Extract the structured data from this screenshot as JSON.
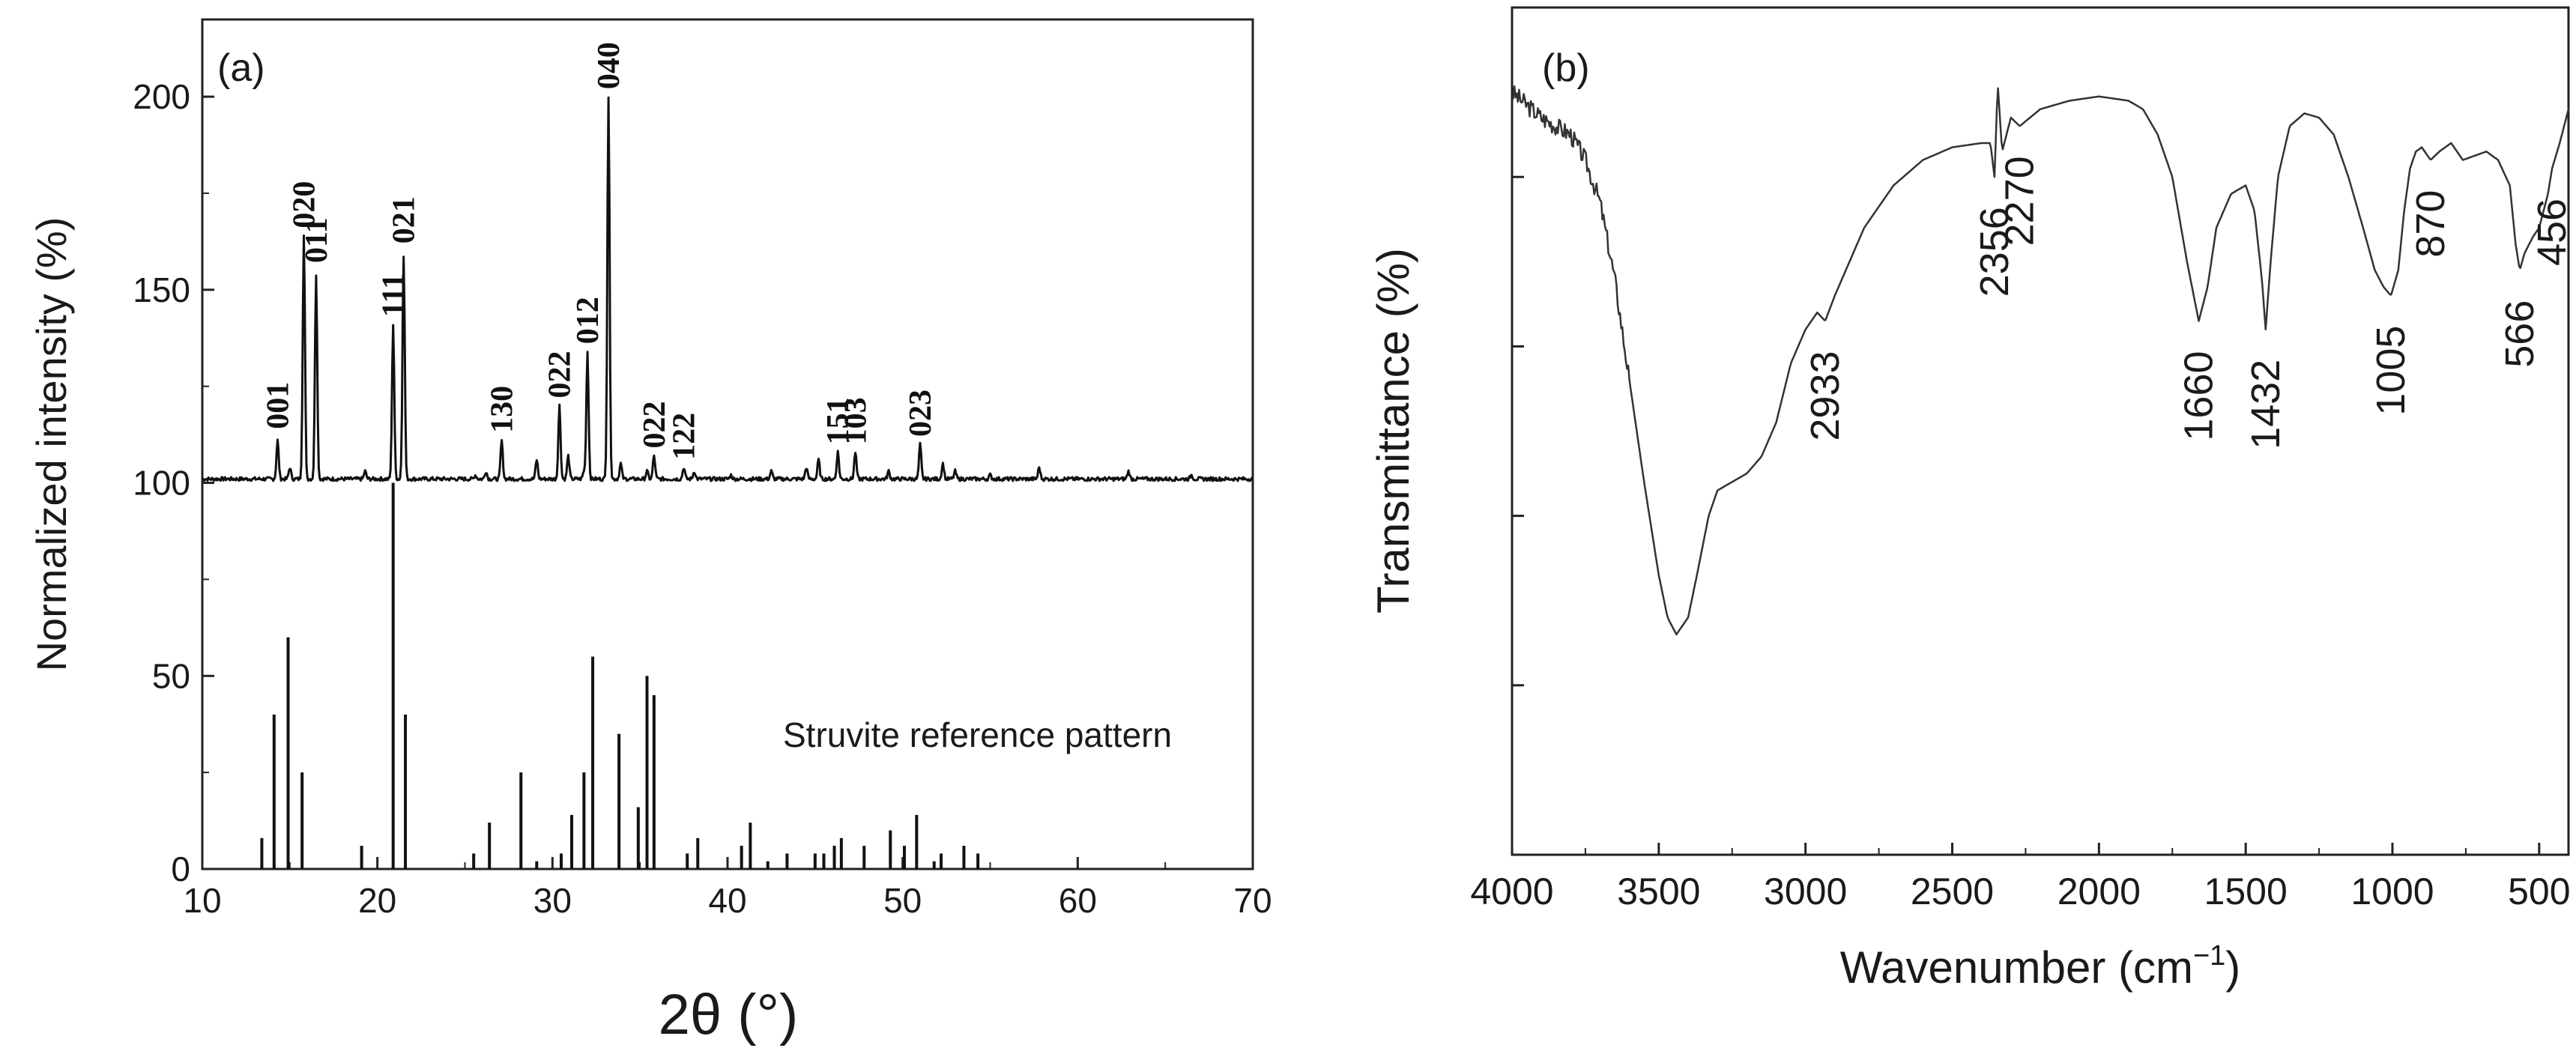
{
  "chart_data": [
    {
      "type": "line",
      "panel_label": "(a)",
      "title": "",
      "xlabel": "2θ (°)",
      "ylabel": "Normalized intensity (%)",
      "xlim": [
        10,
        70
      ],
      "ylim": [
        0,
        220
      ],
      "x_ticks": [
        "10",
        "20",
        "30",
        "40",
        "50",
        "60",
        "70"
      ],
      "y_ticks": [
        "0",
        "50",
        "100",
        "150",
        "200"
      ],
      "reference_label": "Struvite reference pattern",
      "pattern_baseline": 101,
      "pattern_peaks": [
        {
          "x": 14.3,
          "h": 10
        },
        {
          "x": 15.0,
          "h": 3
        },
        {
          "x": 15.8,
          "h": 63
        },
        {
          "x": 16.5,
          "h": 53
        },
        {
          "x": 19.3,
          "h": 2
        },
        {
          "x": 20.9,
          "h": 40
        },
        {
          "x": 21.5,
          "h": 58
        },
        {
          "x": 25.6,
          "h": 1
        },
        {
          "x": 26.2,
          "h": 2
        },
        {
          "x": 27.1,
          "h": 10
        },
        {
          "x": 29.1,
          "h": 5
        },
        {
          "x": 30.4,
          "h": 19
        },
        {
          "x": 30.9,
          "h": 6
        },
        {
          "x": 31.8,
          "h": 2
        },
        {
          "x": 32.0,
          "h": 33
        },
        {
          "x": 33.2,
          "h": 99
        },
        {
          "x": 33.9,
          "h": 4
        },
        {
          "x": 35.4,
          "h": 2
        },
        {
          "x": 35.8,
          "h": 6
        },
        {
          "x": 37.5,
          "h": 3
        },
        {
          "x": 38.1,
          "h": 2
        },
        {
          "x": 40.2,
          "h": 1
        },
        {
          "x": 42.5,
          "h": 2
        },
        {
          "x": 44.5,
          "h": 3
        },
        {
          "x": 45.2,
          "h": 5
        },
        {
          "x": 46.3,
          "h": 7
        },
        {
          "x": 47.3,
          "h": 7
        },
        {
          "x": 49.2,
          "h": 2
        },
        {
          "x": 51.0,
          "h": 9
        },
        {
          "x": 52.3,
          "h": 4
        },
        {
          "x": 53.0,
          "h": 2
        },
        {
          "x": 55.0,
          "h": 1
        },
        {
          "x": 57.8,
          "h": 3
        },
        {
          "x": 62.9,
          "h": 2
        },
        {
          "x": 66.5,
          "h": 1
        }
      ],
      "peak_labels": [
        {
          "label": "001",
          "x": 14.3,
          "y": 112
        },
        {
          "label": "020",
          "x": 15.8,
          "y": 164
        },
        {
          "label": "011",
          "x": 16.5,
          "y": 155
        },
        {
          "label": "111",
          "x": 20.9,
          "y": 141
        },
        {
          "label": "021",
          "x": 21.5,
          "y": 160
        },
        {
          "label": "130",
          "x": 27.1,
          "y": 111
        },
        {
          "label": "022",
          "x": 30.4,
          "y": 120
        },
        {
          "label": "012",
          "x": 32.0,
          "y": 134
        },
        {
          "label": "040",
          "x": 33.2,
          "y": 200
        },
        {
          "label": "022",
          "x": 35.8,
          "y": 107
        },
        {
          "label": "122",
          "x": 37.5,
          "y": 104
        },
        {
          "label": "151",
          "x": 46.3,
          "y": 108
        },
        {
          "label": "103",
          "x": 47.3,
          "y": 108
        },
        {
          "label": "023",
          "x": 51.0,
          "y": 110
        }
      ],
      "reference_sticks": [
        {
          "x": 13.4,
          "y": 8
        },
        {
          "x": 14.1,
          "y": 40
        },
        {
          "x": 14.9,
          "y": 60
        },
        {
          "x": 15.7,
          "y": 25
        },
        {
          "x": 19.1,
          "y": 6
        },
        {
          "x": 20.9,
          "y": 100
        },
        {
          "x": 21.6,
          "y": 40
        },
        {
          "x": 25.5,
          "y": 4
        },
        {
          "x": 26.4,
          "y": 12
        },
        {
          "x": 28.2,
          "y": 25
        },
        {
          "x": 29.1,
          "y": 2
        },
        {
          "x": 30.5,
          "y": 4
        },
        {
          "x": 31.1,
          "y": 14
        },
        {
          "x": 31.8,
          "y": 25
        },
        {
          "x": 32.3,
          "y": 55
        },
        {
          "x": 33.8,
          "y": 35
        },
        {
          "x": 34.9,
          "y": 16
        },
        {
          "x": 35.4,
          "y": 50
        },
        {
          "x": 35.8,
          "y": 45
        },
        {
          "x": 37.7,
          "y": 4
        },
        {
          "x": 38.3,
          "y": 8
        },
        {
          "x": 40.8,
          "y": 6
        },
        {
          "x": 41.3,
          "y": 12
        },
        {
          "x": 42.3,
          "y": 2
        },
        {
          "x": 43.4,
          "y": 4
        },
        {
          "x": 45.0,
          "y": 4
        },
        {
          "x": 45.5,
          "y": 4
        },
        {
          "x": 46.1,
          "y": 6
        },
        {
          "x": 46.5,
          "y": 8
        },
        {
          "x": 47.8,
          "y": 6
        },
        {
          "x": 49.3,
          "y": 10
        },
        {
          "x": 50.1,
          "y": 6
        },
        {
          "x": 50.8,
          "y": 14
        },
        {
          "x": 51.8,
          "y": 2
        },
        {
          "x": 52.2,
          "y": 4
        },
        {
          "x": 53.5,
          "y": 6
        },
        {
          "x": 54.3,
          "y": 4
        }
      ]
    },
    {
      "type": "line",
      "panel_label": "(b)",
      "title": "",
      "xlabel": "Wavenumber (cm",
      "xlabel_sup": "−1",
      "xlabel_end": ")",
      "ylabel": "Transmittance (%)",
      "xlim": [
        4000,
        400
      ],
      "ylim": [
        0,
        100
      ],
      "x_ticks": [
        "4000",
        "3500",
        "3000",
        "2500",
        "2000",
        "1500",
        "1000",
        "500"
      ],
      "y_ticks_shown": false,
      "spectrum": [
        {
          "x": 4000,
          "y": 90
        },
        {
          "x": 3900,
          "y": 87
        },
        {
          "x": 3800,
          "y": 85
        },
        {
          "x": 3750,
          "y": 82
        },
        {
          "x": 3700,
          "y": 77
        },
        {
          "x": 3650,
          "y": 68
        },
        {
          "x": 3600,
          "y": 56
        },
        {
          "x": 3550,
          "y": 44
        },
        {
          "x": 3500,
          "y": 33
        },
        {
          "x": 3470,
          "y": 28
        },
        {
          "x": 3440,
          "y": 26
        },
        {
          "x": 3400,
          "y": 28
        },
        {
          "x": 3370,
          "y": 33
        },
        {
          "x": 3330,
          "y": 40
        },
        {
          "x": 3300,
          "y": 43
        },
        {
          "x": 3250,
          "y": 44
        },
        {
          "x": 3200,
          "y": 45
        },
        {
          "x": 3150,
          "y": 47
        },
        {
          "x": 3100,
          "y": 51
        },
        {
          "x": 3050,
          "y": 58
        },
        {
          "x": 3000,
          "y": 62
        },
        {
          "x": 2960,
          "y": 64
        },
        {
          "x": 2933,
          "y": 63
        },
        {
          "x": 2900,
          "y": 66
        },
        {
          "x": 2850,
          "y": 70
        },
        {
          "x": 2800,
          "y": 74
        },
        {
          "x": 2700,
          "y": 79
        },
        {
          "x": 2600,
          "y": 82
        },
        {
          "x": 2500,
          "y": 83.5
        },
        {
          "x": 2400,
          "y": 84
        },
        {
          "x": 2370,
          "y": 84
        },
        {
          "x": 2356,
          "y": 80
        },
        {
          "x": 2345,
          "y": 91
        },
        {
          "x": 2330,
          "y": 83
        },
        {
          "x": 2300,
          "y": 87
        },
        {
          "x": 2270,
          "y": 86
        },
        {
          "x": 2200,
          "y": 88
        },
        {
          "x": 2100,
          "y": 89
        },
        {
          "x": 2000,
          "y": 89.5
        },
        {
          "x": 1900,
          "y": 89
        },
        {
          "x": 1850,
          "y": 88
        },
        {
          "x": 1800,
          "y": 85
        },
        {
          "x": 1750,
          "y": 80
        },
        {
          "x": 1700,
          "y": 70
        },
        {
          "x": 1660,
          "y": 63
        },
        {
          "x": 1630,
          "y": 67
        },
        {
          "x": 1600,
          "y": 74
        },
        {
          "x": 1550,
          "y": 78
        },
        {
          "x": 1500,
          "y": 79
        },
        {
          "x": 1470,
          "y": 76
        },
        {
          "x": 1445,
          "y": 68
        },
        {
          "x": 1432,
          "y": 62
        },
        {
          "x": 1415,
          "y": 70
        },
        {
          "x": 1390,
          "y": 80
        },
        {
          "x": 1350,
          "y": 86
        },
        {
          "x": 1300,
          "y": 87.5
        },
        {
          "x": 1250,
          "y": 87
        },
        {
          "x": 1200,
          "y": 85
        },
        {
          "x": 1150,
          "y": 80
        },
        {
          "x": 1100,
          "y": 74
        },
        {
          "x": 1060,
          "y": 69
        },
        {
          "x": 1030,
          "y": 67
        },
        {
          "x": 1005,
          "y": 66
        },
        {
          "x": 980,
          "y": 69
        },
        {
          "x": 960,
          "y": 76
        },
        {
          "x": 940,
          "y": 81
        },
        {
          "x": 920,
          "y": 83
        },
        {
          "x": 900,
          "y": 83.5
        },
        {
          "x": 870,
          "y": 82
        },
        {
          "x": 840,
          "y": 83
        },
        {
          "x": 800,
          "y": 84
        },
        {
          "x": 760,
          "y": 82
        },
        {
          "x": 720,
          "y": 82.5
        },
        {
          "x": 680,
          "y": 83
        },
        {
          "x": 640,
          "y": 82
        },
        {
          "x": 600,
          "y": 79
        },
        {
          "x": 580,
          "y": 72
        },
        {
          "x": 566,
          "y": 69
        },
        {
          "x": 550,
          "y": 71
        },
        {
          "x": 520,
          "y": 73
        },
        {
          "x": 500,
          "y": 74
        },
        {
          "x": 470,
          "y": 78
        },
        {
          "x": 456,
          "y": 81
        },
        {
          "x": 430,
          "y": 84
        },
        {
          "x": 400,
          "y": 88
        }
      ],
      "band_labels": [
        {
          "label": "2933",
          "x": 2933,
          "y": 63
        },
        {
          "label": "2356",
          "x": 2356,
          "y": 80
        },
        {
          "label": "2270",
          "x": 2270,
          "y": 86
        },
        {
          "label": "1660",
          "x": 1660,
          "y": 63
        },
        {
          "label": "1432",
          "x": 1432,
          "y": 62
        },
        {
          "label": "1005",
          "x": 1005,
          "y": 66
        },
        {
          "label": "870",
          "x": 870,
          "y": 82
        },
        {
          "label": "566",
          "x": 566,
          "y": 69
        },
        {
          "label": "456",
          "x": 456,
          "y": 81
        }
      ]
    }
  ]
}
